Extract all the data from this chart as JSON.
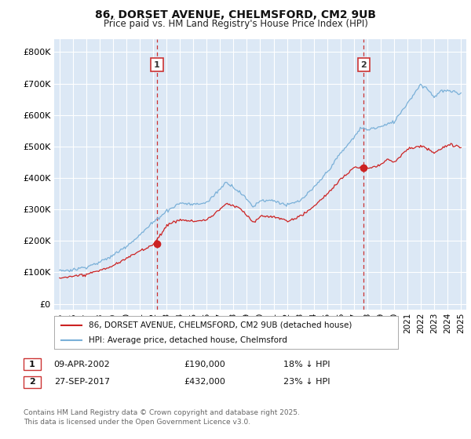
{
  "title": "86, DORSET AVENUE, CHELMSFORD, CM2 9UB",
  "subtitle": "Price paid vs. HM Land Registry's House Price Index (HPI)",
  "background_color": "#ffffff",
  "plot_background": "#dce8f5",
  "grid_color": "#ffffff",
  "hpi_color": "#7ab0d8",
  "price_color": "#cc2222",
  "dashed_line_color": "#cc3333",
  "marker1_date_x": 2002.27,
  "marker2_date_x": 2017.74,
  "marker1_price": 190000,
  "marker2_price": 432000,
  "yticks": [
    0,
    100000,
    200000,
    300000,
    400000,
    500000,
    600000,
    700000,
    800000
  ],
  "ytick_labels": [
    "£0",
    "£100K",
    "£200K",
    "£300K",
    "£400K",
    "£500K",
    "£600K",
    "£700K",
    "£800K"
  ],
  "ylim": [
    -18000,
    840000
  ],
  "xlim_start": 1994.6,
  "xlim_end": 2025.4,
  "legend_line1": "86, DORSET AVENUE, CHELMSFORD, CM2 9UB (detached house)",
  "legend_line2": "HPI: Average price, detached house, Chelmsford",
  "footnote": "Contains HM Land Registry data © Crown copyright and database right 2025.\nThis data is licensed under the Open Government Licence v3.0.",
  "xtick_years": [
    1995,
    1996,
    1997,
    1998,
    1999,
    2000,
    2001,
    2002,
    2003,
    2004,
    2005,
    2006,
    2007,
    2008,
    2009,
    2010,
    2011,
    2012,
    2013,
    2014,
    2015,
    2016,
    2017,
    2018,
    2019,
    2020,
    2021,
    2022,
    2023,
    2024,
    2025
  ]
}
